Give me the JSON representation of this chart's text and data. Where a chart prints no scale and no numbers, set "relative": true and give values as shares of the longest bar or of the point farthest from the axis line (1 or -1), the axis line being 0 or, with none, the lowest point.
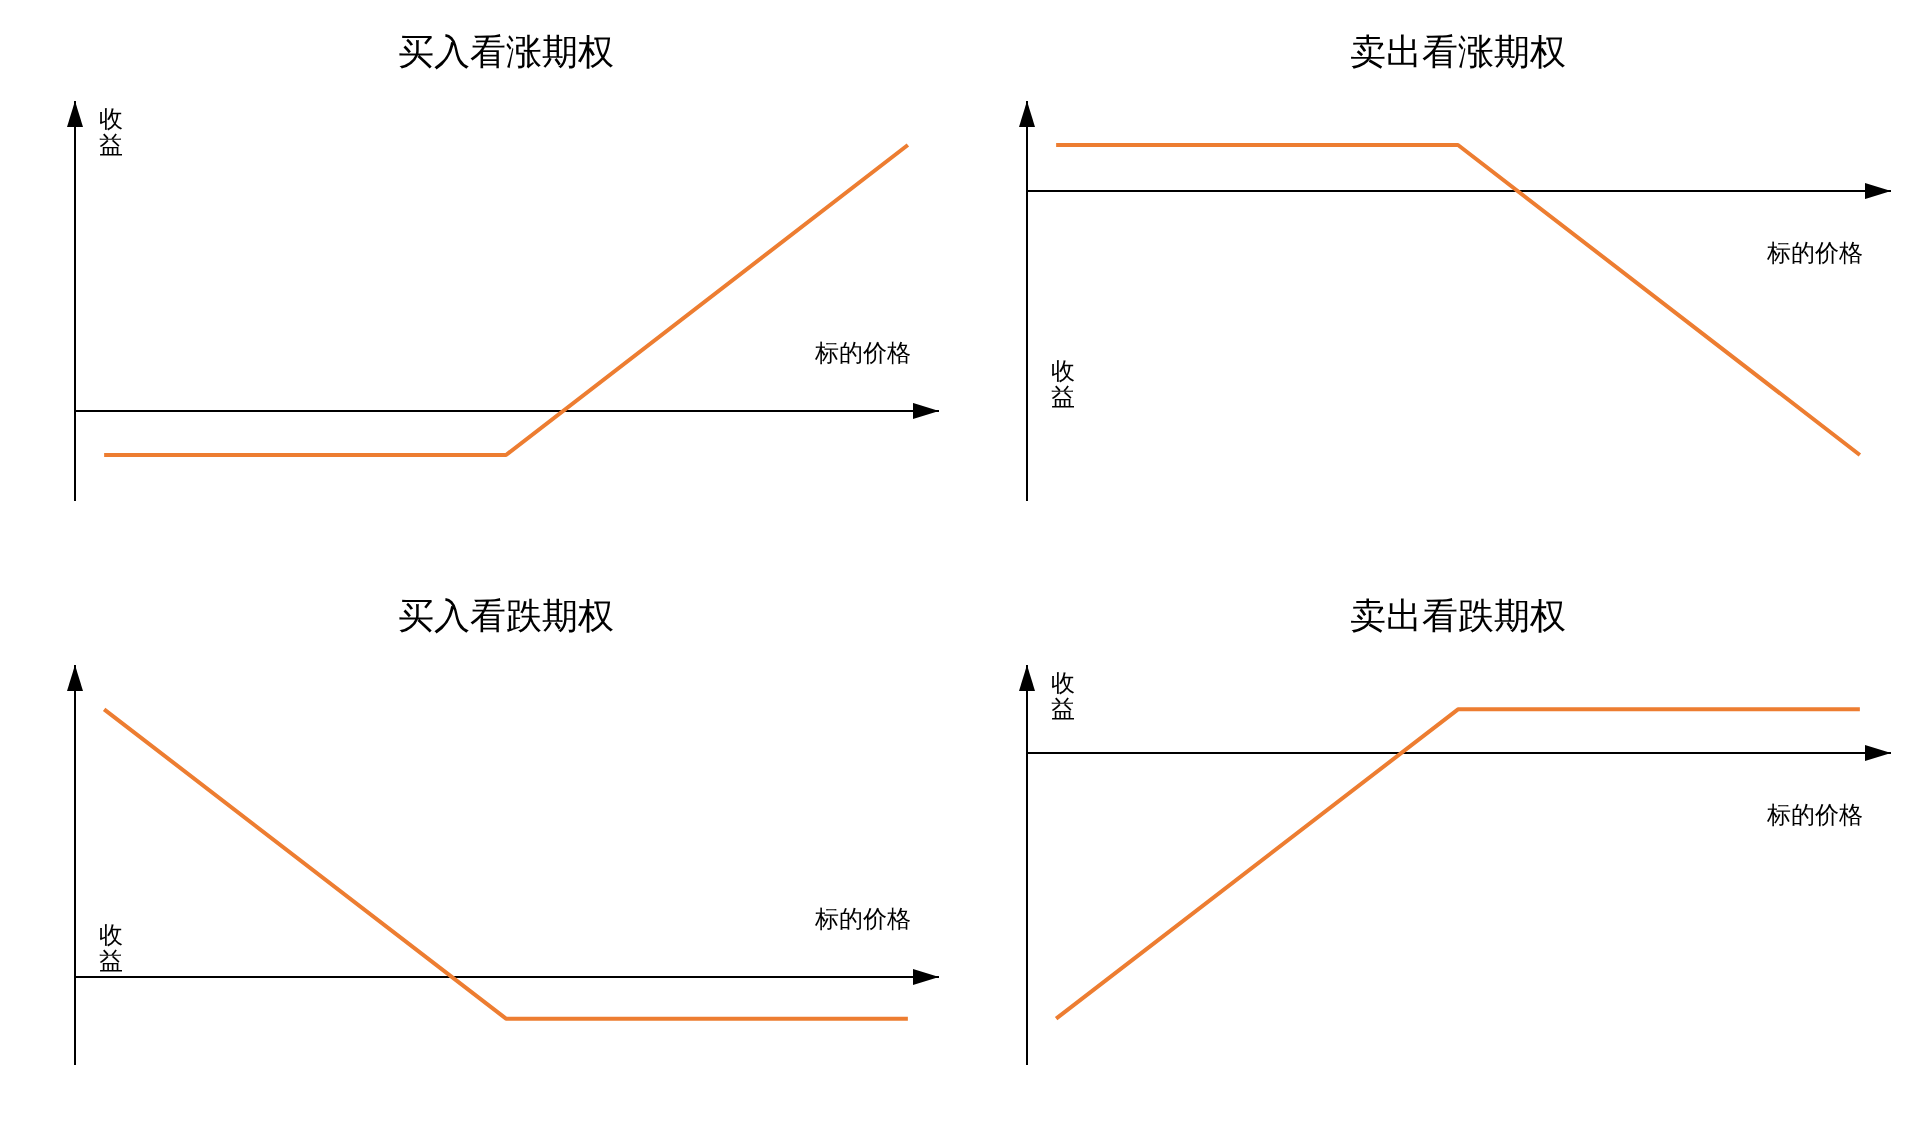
{
  "chart_data": [
    {
      "type": "line",
      "title": "买入看涨期权",
      "xlabel": "标的价格",
      "ylabel": "收益",
      "relative": true,
      "categories": [
        null,
        null,
        null
      ],
      "values": [
        -0.17,
        -0.17,
        1
      ],
      "color": "#ed7d31"
    },
    {
      "type": "line",
      "title": "卖出看涨期权",
      "xlabel": "标的价格",
      "ylabel": "收益",
      "relative": true,
      "categories": [
        null,
        null,
        null
      ],
      "values": [
        0.17,
        0.17,
        -1
      ],
      "color": "#ed7d31"
    },
    {
      "type": "line",
      "title": "买入看跌期权",
      "xlabel": "标的价格",
      "ylabel": "收益",
      "relative": true,
      "categories": [
        null,
        null,
        null
      ],
      "values": [
        1,
        -0.16,
        -0.16
      ],
      "color": "#ed7d31"
    },
    {
      "type": "line",
      "title": "卖出看跌期权",
      "xlabel": "标的价格",
      "ylabel": "收益",
      "relative": true,
      "categories": [
        null,
        null,
        null
      ],
      "values": [
        -1,
        0.16,
        0.16
      ],
      "color": "#ed7d31"
    }
  ]
}
